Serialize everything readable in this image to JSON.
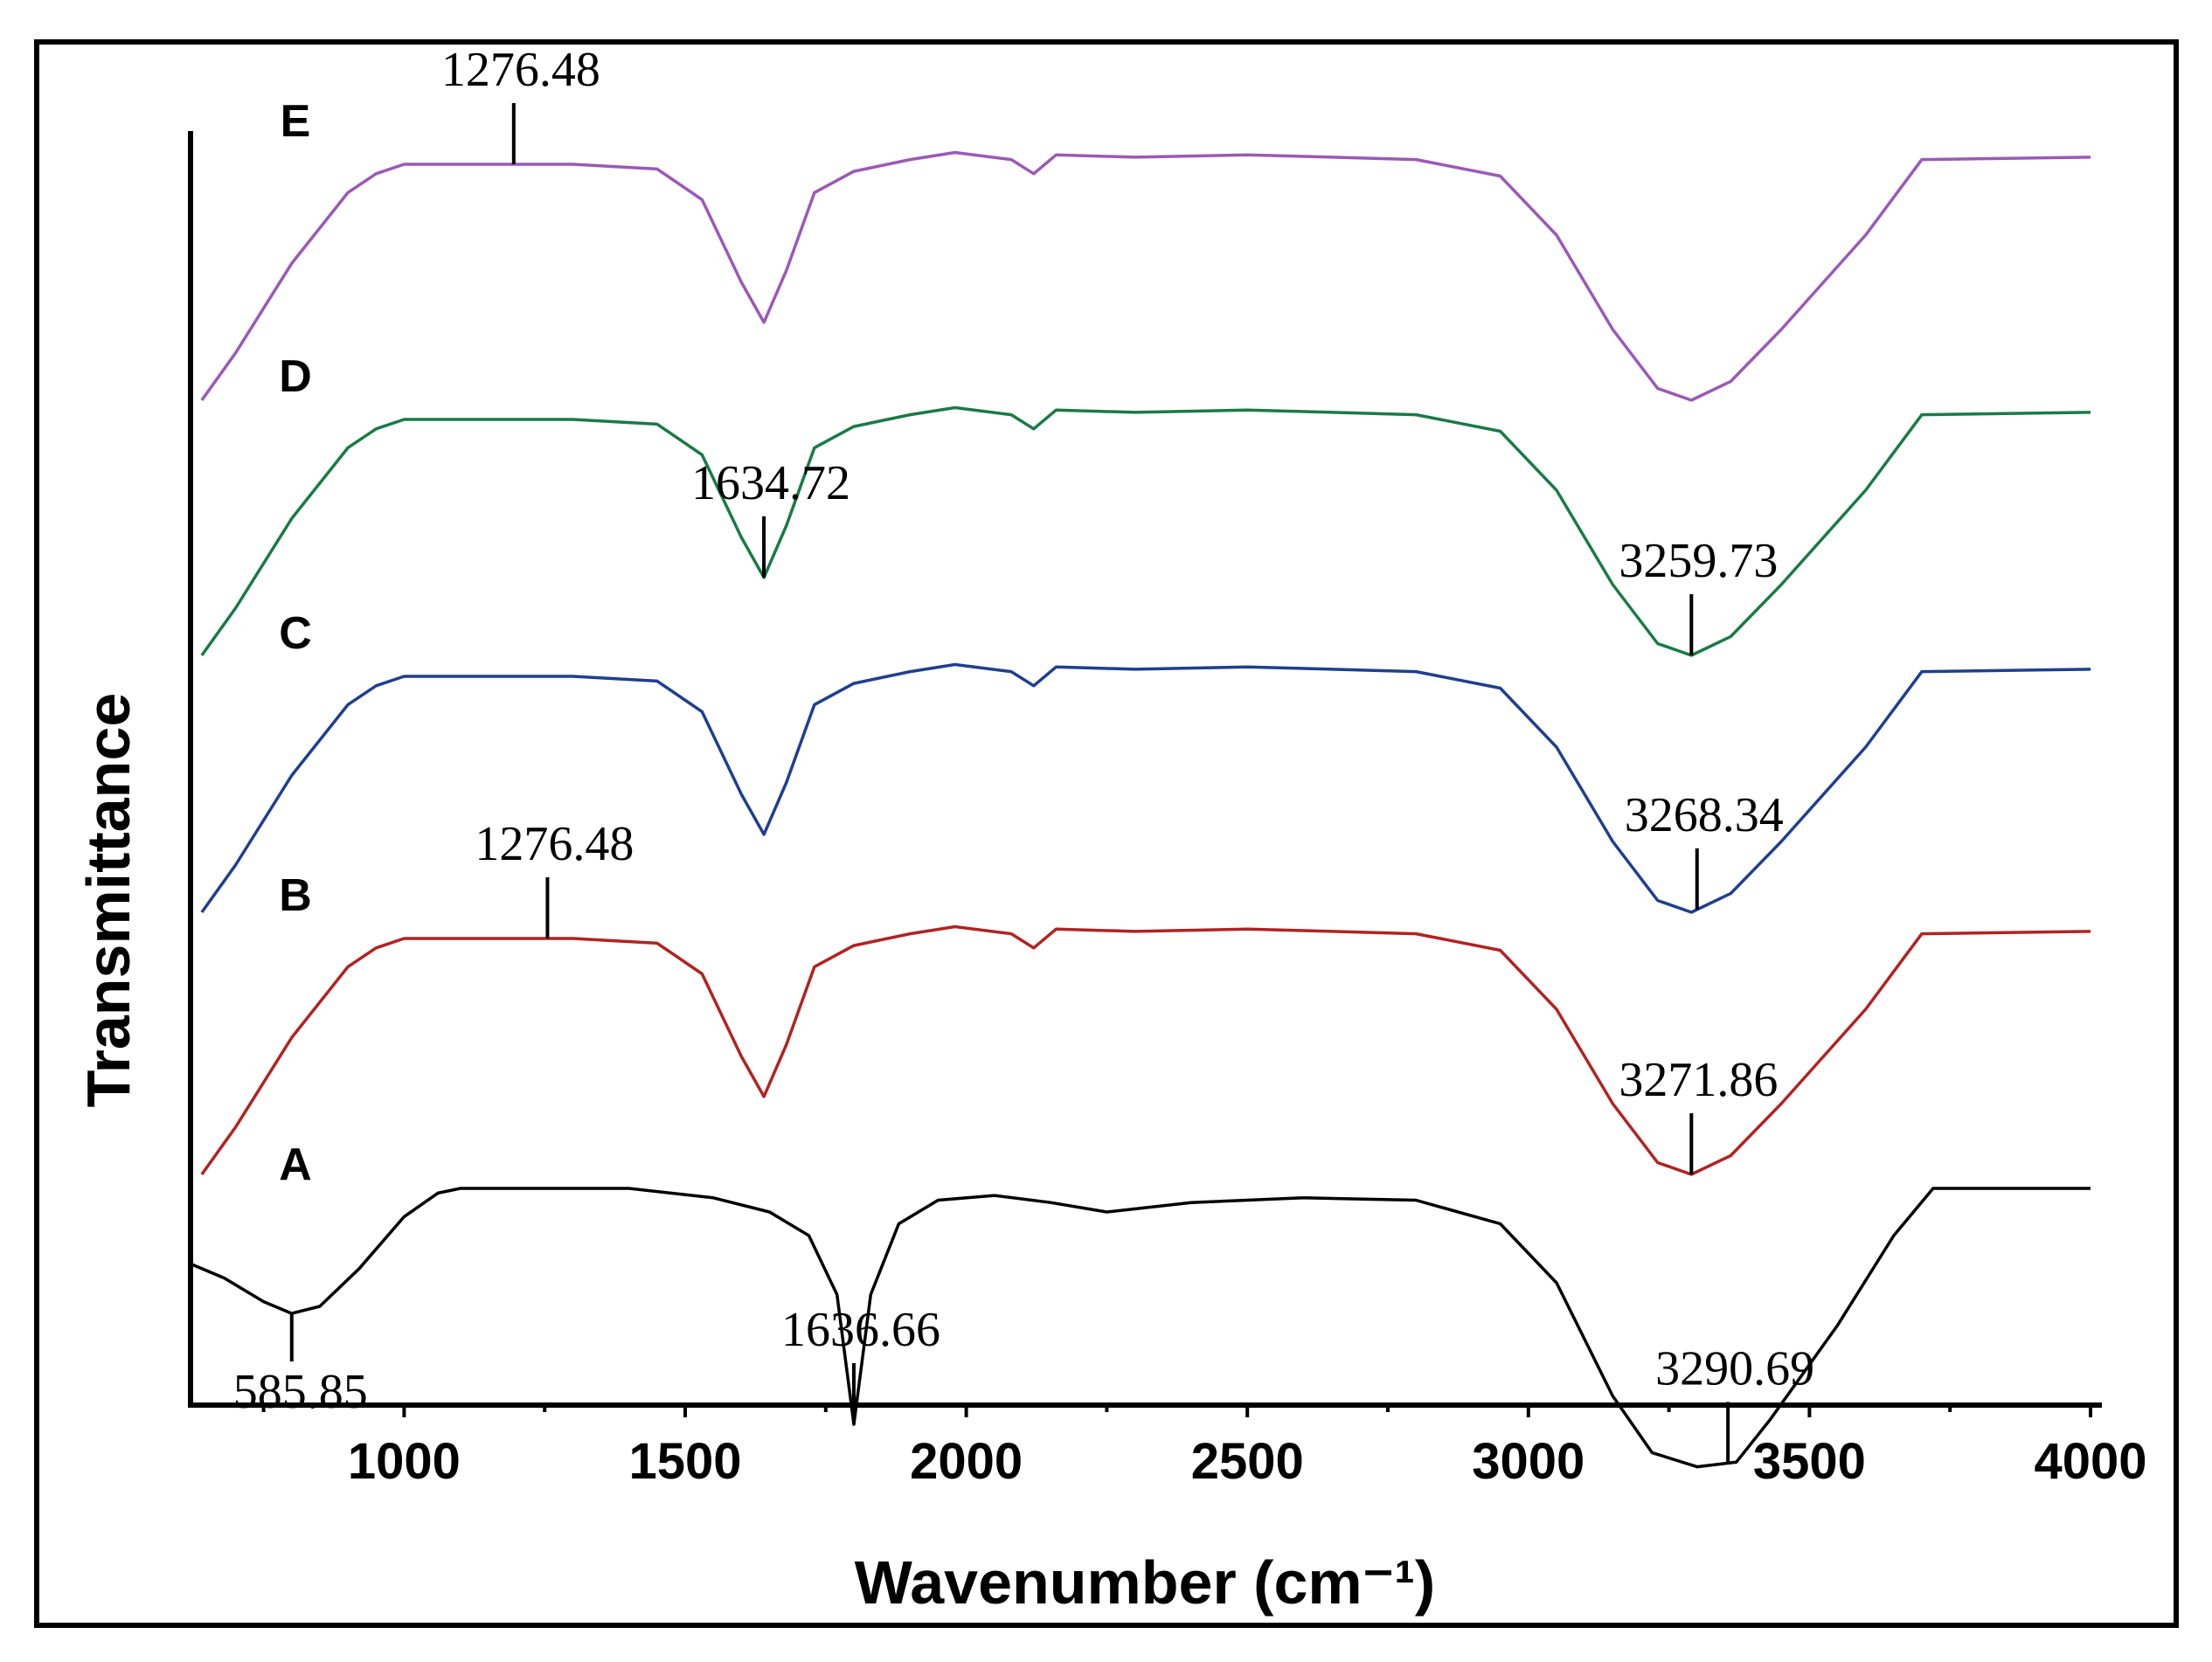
{
  "chart_data": {
    "type": "line",
    "title": "",
    "xlabel": "Wavenumber (cm⁻¹)",
    "ylabel": "Transmittance",
    "xlim": [
      620,
      4000
    ],
    "xticks": [
      1000,
      1500,
      2000,
      2500,
      3000,
      3500,
      4000
    ],
    "grid": false,
    "series": [
      {
        "name": "A",
        "color": "#000000",
        "points": [
          [
            620,
            -0.32
          ],
          [
            680,
            -0.38
          ],
          [
            750,
            -0.48
          ],
          [
            800,
            -0.53
          ],
          [
            850,
            -0.5
          ],
          [
            920,
            -0.34
          ],
          [
            1000,
            -0.12
          ],
          [
            1060,
            -0.02
          ],
          [
            1100,
            0
          ],
          [
            1200,
            0
          ],
          [
            1400,
            0
          ],
          [
            1550,
            -0.04
          ],
          [
            1650,
            -0.1
          ],
          [
            1720,
            -0.2
          ],
          [
            1770,
            -0.45
          ],
          [
            1800,
            -1.0
          ],
          [
            1830,
            -0.45
          ],
          [
            1880,
            -0.15
          ],
          [
            1950,
            -0.05
          ],
          [
            2050,
            -0.03
          ],
          [
            2150,
            -0.06
          ],
          [
            2250,
            -0.1
          ],
          [
            2400,
            -0.06
          ],
          [
            2600,
            -0.04
          ],
          [
            2800,
            -0.05
          ],
          [
            2950,
            -0.15
          ],
          [
            3050,
            -0.4
          ],
          [
            3150,
            -0.88
          ],
          [
            3220,
            -1.12
          ],
          [
            3300,
            -1.18
          ],
          [
            3370,
            -1.16
          ],
          [
            3430,
            -0.98
          ],
          [
            3550,
            -0.58
          ],
          [
            3650,
            -0.2
          ],
          [
            3720,
            0
          ],
          [
            4000,
            0
          ]
        ],
        "peaks": [
          {
            "label": "585.85",
            "x": 800,
            "position": "below"
          },
          {
            "label": "1636.66",
            "x": 1800,
            "position": "above"
          },
          {
            "label": "3290.69",
            "x": 3355,
            "position": "above"
          }
        ]
      },
      {
        "name": "B",
        "color": "#b22222",
        "points": [
          [
            640,
            -1.0
          ],
          [
            700,
            -0.8
          ],
          [
            800,
            -0.42
          ],
          [
            900,
            -0.12
          ],
          [
            950,
            -0.04
          ],
          [
            1000,
            0
          ],
          [
            1300,
            0
          ],
          [
            1450,
            -0.02
          ],
          [
            1530,
            -0.15
          ],
          [
            1600,
            -0.5
          ],
          [
            1640,
            -0.67
          ],
          [
            1680,
            -0.45
          ],
          [
            1730,
            -0.12
          ],
          [
            1800,
            -0.03
          ],
          [
            1900,
            0.02
          ],
          [
            1980,
            0.05
          ],
          [
            2080,
            0.02
          ],
          [
            2120,
            -0.04
          ],
          [
            2160,
            0.04
          ],
          [
            2300,
            0.03
          ],
          [
            2500,
            0.04
          ],
          [
            2800,
            0.02
          ],
          [
            2950,
            -0.05
          ],
          [
            3050,
            -0.3
          ],
          [
            3150,
            -0.7
          ],
          [
            3230,
            -0.95
          ],
          [
            3290,
            -1.0
          ],
          [
            3360,
            -0.92
          ],
          [
            3450,
            -0.7
          ],
          [
            3600,
            -0.3
          ],
          [
            3700,
            0.02
          ],
          [
            4000,
            0.03
          ]
        ],
        "peaks": [
          {
            "label": "1276.48",
            "x": 1255,
            "position": "above"
          },
          {
            "label": "3271.86",
            "x": 3290,
            "position": "above"
          }
        ]
      },
      {
        "name": "C",
        "color": "#1f3f8f",
        "points": [
          [
            640,
            -1.0
          ],
          [
            700,
            -0.8
          ],
          [
            800,
            -0.42
          ],
          [
            900,
            -0.12
          ],
          [
            950,
            -0.04
          ],
          [
            1000,
            0
          ],
          [
            1300,
            0
          ],
          [
            1450,
            -0.02
          ],
          [
            1530,
            -0.15
          ],
          [
            1600,
            -0.5
          ],
          [
            1640,
            -0.67
          ],
          [
            1680,
            -0.45
          ],
          [
            1730,
            -0.12
          ],
          [
            1800,
            -0.03
          ],
          [
            1900,
            0.02
          ],
          [
            1980,
            0.05
          ],
          [
            2080,
            0.02
          ],
          [
            2120,
            -0.04
          ],
          [
            2160,
            0.04
          ],
          [
            2300,
            0.03
          ],
          [
            2500,
            0.04
          ],
          [
            2800,
            0.02
          ],
          [
            2950,
            -0.05
          ],
          [
            3050,
            -0.3
          ],
          [
            3150,
            -0.7
          ],
          [
            3230,
            -0.95
          ],
          [
            3290,
            -1.0
          ],
          [
            3360,
            -0.92
          ],
          [
            3450,
            -0.7
          ],
          [
            3600,
            -0.3
          ],
          [
            3700,
            0.02
          ],
          [
            4000,
            0.03
          ]
        ],
        "peaks": [
          {
            "label": "3268.34",
            "x": 3300,
            "position": "above"
          }
        ]
      },
      {
        "name": "D",
        "color": "#1a7a48",
        "points": [
          [
            640,
            -1.0
          ],
          [
            700,
            -0.8
          ],
          [
            800,
            -0.42
          ],
          [
            900,
            -0.12
          ],
          [
            950,
            -0.04
          ],
          [
            1000,
            0
          ],
          [
            1300,
            0
          ],
          [
            1450,
            -0.02
          ],
          [
            1530,
            -0.15
          ],
          [
            1600,
            -0.5
          ],
          [
            1640,
            -0.67
          ],
          [
            1680,
            -0.45
          ],
          [
            1730,
            -0.12
          ],
          [
            1800,
            -0.03
          ],
          [
            1900,
            0.02
          ],
          [
            1980,
            0.05
          ],
          [
            2080,
            0.02
          ],
          [
            2120,
            -0.04
          ],
          [
            2160,
            0.04
          ],
          [
            2300,
            0.03
          ],
          [
            2500,
            0.04
          ],
          [
            2800,
            0.02
          ],
          [
            2950,
            -0.05
          ],
          [
            3050,
            -0.3
          ],
          [
            3150,
            -0.7
          ],
          [
            3230,
            -0.95
          ],
          [
            3290,
            -1.0
          ],
          [
            3360,
            -0.92
          ],
          [
            3450,
            -0.7
          ],
          [
            3600,
            -0.3
          ],
          [
            3700,
            0.02
          ],
          [
            4000,
            0.03
          ]
        ],
        "peaks": [
          {
            "label": "1634.72",
            "x": 1640,
            "position": "above"
          },
          {
            "label": "3259.73",
            "x": 3290,
            "position": "above"
          }
        ]
      },
      {
        "name": "E",
        "color": "#9b59b6",
        "points": [
          [
            640,
            -1.0
          ],
          [
            700,
            -0.8
          ],
          [
            800,
            -0.42
          ],
          [
            900,
            -0.12
          ],
          [
            950,
            -0.04
          ],
          [
            1000,
            0
          ],
          [
            1300,
            0
          ],
          [
            1450,
            -0.02
          ],
          [
            1530,
            -0.15
          ],
          [
            1600,
            -0.5
          ],
          [
            1640,
            -0.67
          ],
          [
            1680,
            -0.45
          ],
          [
            1730,
            -0.12
          ],
          [
            1800,
            -0.03
          ],
          [
            1900,
            0.02
          ],
          [
            1980,
            0.05
          ],
          [
            2080,
            0.02
          ],
          [
            2120,
            -0.04
          ],
          [
            2160,
            0.04
          ],
          [
            2300,
            0.03
          ],
          [
            2500,
            0.04
          ],
          [
            2800,
            0.02
          ],
          [
            2950,
            -0.05
          ],
          [
            3050,
            -0.3
          ],
          [
            3150,
            -0.7
          ],
          [
            3230,
            -0.95
          ],
          [
            3290,
            -1.0
          ],
          [
            3360,
            -0.92
          ],
          [
            3450,
            -0.7
          ],
          [
            3600,
            -0.3
          ],
          [
            3700,
            0.02
          ],
          [
            4000,
            0.03
          ]
        ],
        "peaks": [
          {
            "label": "1276.48",
            "x": 1195,
            "position": "above"
          }
        ]
      }
    ]
  }
}
